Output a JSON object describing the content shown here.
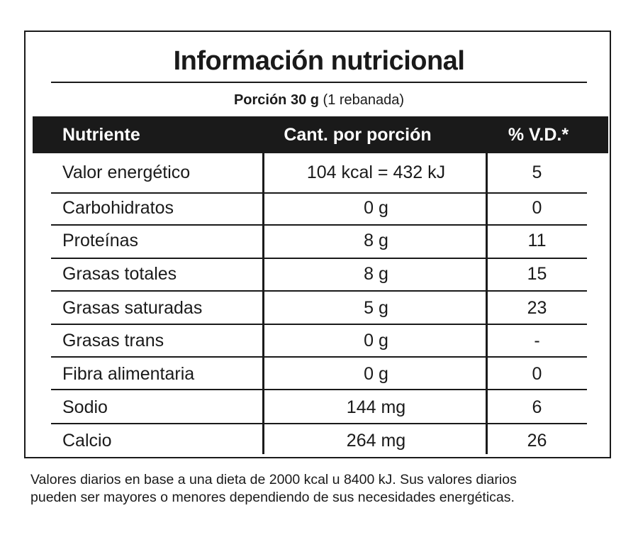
{
  "label": {
    "title": "Información nutricional",
    "serving_prefix": "Porción 30 g",
    "serving_paren": "(1 rebanada)",
    "columns": {
      "nutrient": "Nutriente",
      "amount": "Cant. por porción",
      "dv": "% V.D.*"
    },
    "rows": [
      {
        "nutrient": "Valor energético",
        "amount": "104 kcal = 432 kJ",
        "dv": "5"
      },
      {
        "nutrient": "Carbohidratos",
        "amount": "0 g",
        "dv": "0"
      },
      {
        "nutrient": "Proteínas",
        "amount": "8 g",
        "dv": "11"
      },
      {
        "nutrient": "Grasas totales",
        "amount": "8 g",
        "dv": "15"
      },
      {
        "nutrient": "Grasas saturadas",
        "amount": "5 g",
        "dv": "23"
      },
      {
        "nutrient": "Grasas trans",
        "amount": "0 g",
        "dv": "-"
      },
      {
        "nutrient": "Fibra alimentaria",
        "amount": "0 g",
        "dv": "0"
      },
      {
        "nutrient": "Sodio",
        "amount": "144 mg",
        "dv": "6"
      },
      {
        "nutrient": "Calcio",
        "amount": "264 mg",
        "dv": "26"
      }
    ],
    "footnote_line1": "Valores diarios en base a una dieta de 2000 kcal u 8400 kJ. Sus valores diarios",
    "footnote_line2": "pueden ser mayores o menores dependiendo de sus necesidades energéticas."
  }
}
